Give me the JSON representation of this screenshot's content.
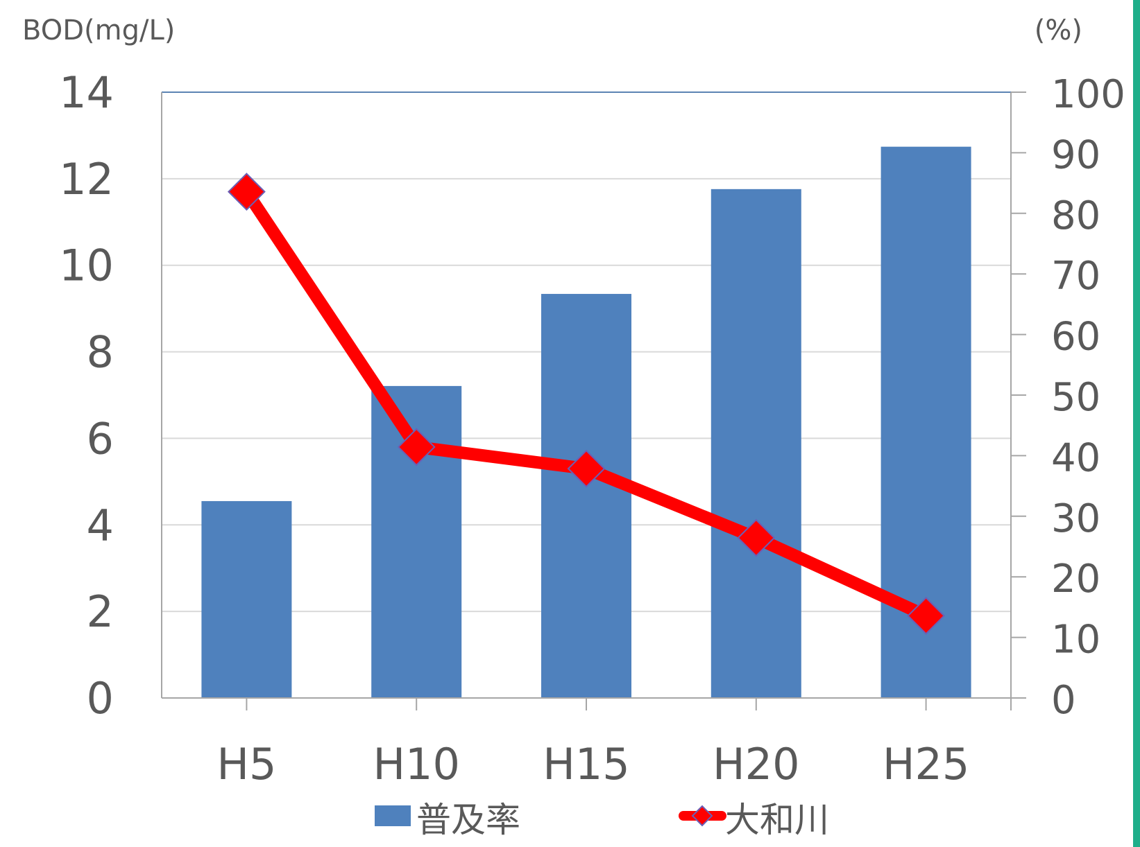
{
  "colors": {
    "bar": "#4f81bd",
    "line": "#ff0000",
    "marker_border": "#6b5fb5",
    "grid": "#d9d9d9",
    "axis": "#a6a6a6",
    "plot_border": "#5b83b3",
    "text": "#595959",
    "edge_accent": "#1fae8a"
  },
  "chart_data": {
    "type": "bar",
    "categories": [
      "H5",
      "H10",
      "H15",
      "H20",
      "H25"
    ],
    "series": [
      {
        "name": "普及率",
        "type": "bar",
        "axis": "right",
        "values": [
          32.5,
          51.5,
          66.7,
          84,
          91
        ]
      },
      {
        "name": "大和川",
        "type": "line",
        "axis": "left",
        "marker": "diamond",
        "values": [
          11.7,
          5.8,
          5.3,
          3.7,
          1.9
        ]
      }
    ],
    "y_left": {
      "label": "BOD(mg/L)",
      "min": 0,
      "max": 14,
      "ticks": [
        "0",
        "2",
        "4",
        "6",
        "8",
        "10",
        "12",
        "14"
      ]
    },
    "y_right": {
      "label": "(%)",
      "min": 0,
      "max": 100,
      "ticks": [
        "0",
        "10",
        "20",
        "30",
        "40",
        "50",
        "60",
        "70",
        "80",
        "90",
        "100"
      ]
    },
    "grid": true,
    "legend": "bottom"
  }
}
